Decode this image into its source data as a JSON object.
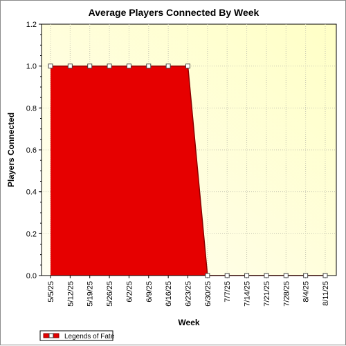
{
  "chart_data": {
    "type": "area",
    "title": "Average Players Connected By Week",
    "xlabel": "Week",
    "ylabel": "Players Connected",
    "categories": [
      "5/5/25",
      "5/12/25",
      "5/19/25",
      "5/26/25",
      "6/2/25",
      "6/9/25",
      "6/16/25",
      "6/23/25",
      "6/30/25",
      "7/7/25",
      "7/14/25",
      "7/21/25",
      "7/28/25",
      "8/4/25",
      "8/11/25"
    ],
    "series": [
      {
        "name": "Legends of Fate",
        "values": [
          1.0,
          1.0,
          1.0,
          1.0,
          1.0,
          1.0,
          1.0,
          1.0,
          0.0,
          0.0,
          0.0,
          0.0,
          0.0,
          0.0,
          0.0
        ],
        "fill_color": "#e60000",
        "line_color": "#8b0000"
      }
    ],
    "ylim": [
      0,
      1.2
    ],
    "yticks": [
      "0.0",
      "0.2",
      "0.4",
      "0.6",
      "0.8",
      "1.0",
      "1.2"
    ],
    "grid": true,
    "legend_position": "bottom-left",
    "colors": {
      "plot_bg_start": "#fffef2",
      "plot_bg_end": "#ffffc6",
      "grid": "#c8c8b4"
    }
  }
}
